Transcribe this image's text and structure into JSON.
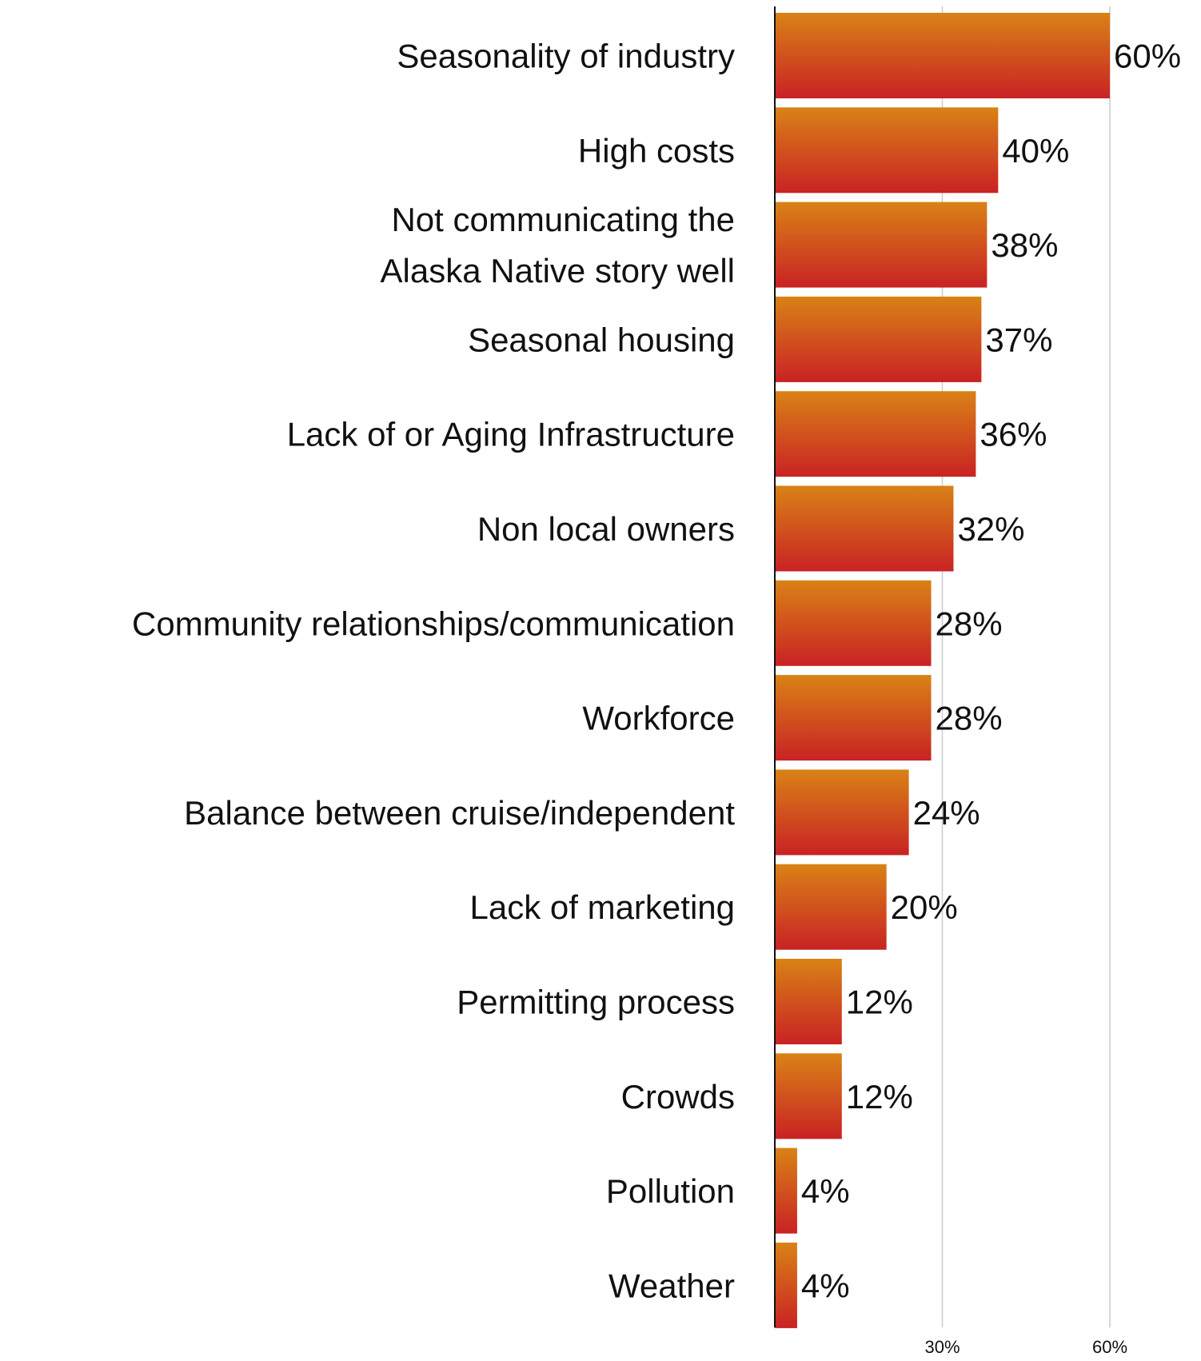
{
  "chart_data": {
    "type": "bar",
    "orientation": "horizontal",
    "categories": [
      [
        "Seasonality of industry"
      ],
      [
        "High costs"
      ],
      [
        "Not communicating the",
        "Alaska Native story well"
      ],
      [
        "Seasonal housing"
      ],
      [
        "Lack of or Aging Infrastructure"
      ],
      [
        "Non local owners"
      ],
      [
        "Community relationships/communication"
      ],
      [
        "Workforce"
      ],
      [
        "Balance between cruise/independent"
      ],
      [
        "Lack of marketing"
      ],
      [
        "Permitting process"
      ],
      [
        "Crowds"
      ],
      [
        "Pollution"
      ],
      [
        "Weather"
      ]
    ],
    "values": [
      60,
      40,
      38,
      37,
      36,
      32,
      28,
      28,
      24,
      20,
      12,
      12,
      4,
      4
    ],
    "value_labels": [
      "60%",
      "40%",
      "38%",
      "37%",
      "36%",
      "32%",
      "28%",
      "28%",
      "24%",
      "20%",
      "12%",
      "12%",
      "4%",
      "4%"
    ],
    "xlim": [
      0,
      60
    ],
    "xticks": [
      30,
      60
    ],
    "xtick_labels": [
      "30%",
      "60%"
    ],
    "grid": "vertical",
    "bar_gradient": [
      "#d98216",
      "#c92224"
    ],
    "gridline_color": "#cccccc",
    "axis_color": "#111111"
  }
}
